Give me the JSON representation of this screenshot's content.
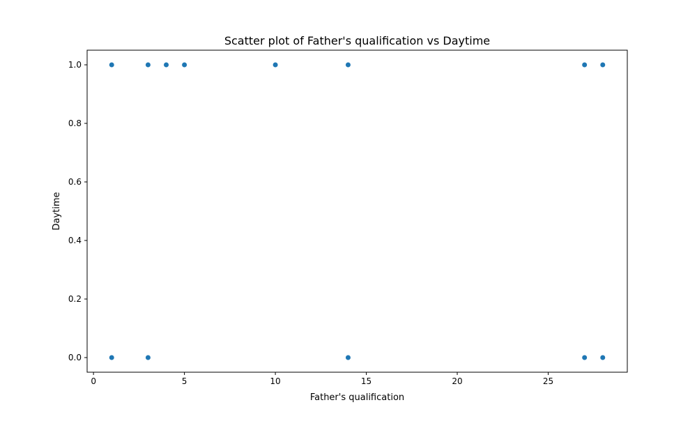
{
  "chart_data": {
    "type": "scatter",
    "title": "Scatter plot of Father's qualification vs Daytime",
    "xlabel": "Father's qualification",
    "ylabel": "Daytime",
    "xlim": [
      -0.35,
      29.35
    ],
    "ylim": [
      -0.05,
      1.05
    ],
    "xticks": [
      0,
      5,
      10,
      15,
      20,
      25
    ],
    "yticks": [
      0.0,
      0.2,
      0.4,
      0.6,
      0.8,
      1.0
    ],
    "ytick_labels": [
      "0.0",
      "0.2",
      "0.4",
      "0.6",
      "0.8",
      "1.0"
    ],
    "grid": false,
    "legend": "none",
    "series": [
      {
        "color": "#1f77b4",
        "points": [
          {
            "x": 1,
            "y": 1
          },
          {
            "x": 3,
            "y": 1
          },
          {
            "x": 4,
            "y": 1
          },
          {
            "x": 5,
            "y": 1
          },
          {
            "x": 10,
            "y": 1
          },
          {
            "x": 14,
            "y": 1
          },
          {
            "x": 27,
            "y": 1
          },
          {
            "x": 28,
            "y": 1
          },
          {
            "x": 1,
            "y": 0
          },
          {
            "x": 3,
            "y": 0
          },
          {
            "x": 14,
            "y": 0
          },
          {
            "x": 27,
            "y": 0
          },
          {
            "x": 28,
            "y": 0
          }
        ]
      }
    ]
  }
}
